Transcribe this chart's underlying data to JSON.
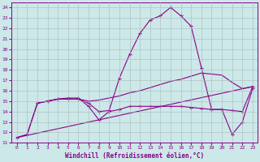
{
  "xlabel": "Windchill (Refroidissement éolien,°C)",
  "background_color": "#cce8e8",
  "line_color": "#880088",
  "xlim": [
    -0.5,
    23.5
  ],
  "ylim": [
    11,
    24.5
  ],
  "xticks": [
    0,
    1,
    2,
    3,
    4,
    5,
    6,
    7,
    8,
    9,
    10,
    11,
    12,
    13,
    14,
    15,
    16,
    17,
    18,
    19,
    20,
    21,
    22,
    23
  ],
  "yticks": [
    11,
    12,
    13,
    14,
    15,
    16,
    17,
    18,
    19,
    20,
    21,
    22,
    23,
    24
  ],
  "line1_x": [
    0,
    1,
    2,
    3,
    4,
    5,
    6,
    7,
    8,
    9,
    10,
    11,
    12,
    13,
    14,
    15,
    16,
    17,
    18,
    19,
    20,
    21,
    22,
    23
  ],
  "line1_y": [
    11.5,
    11.8,
    14.8,
    15.0,
    15.2,
    15.2,
    15.2,
    14.8,
    14.0,
    14.1,
    17.2,
    19.5,
    21.5,
    22.8,
    23.2,
    24.0,
    23.2,
    22.2,
    18.2,
    14.2,
    14.2,
    11.8,
    13.0,
    16.2
  ],
  "line2_x": [
    0,
    1,
    2,
    3,
    4,
    5,
    6,
    7,
    8,
    9,
    10,
    11,
    12,
    13,
    14,
    15,
    16,
    17,
    18,
    19,
    20,
    21,
    22,
    23
  ],
  "line2_y": [
    11.5,
    11.8,
    14.8,
    15.0,
    15.2,
    15.2,
    15.2,
    15.0,
    15.1,
    15.3,
    15.5,
    15.8,
    16.0,
    16.3,
    16.6,
    16.9,
    17.1,
    17.4,
    17.7,
    17.6,
    17.5,
    16.8,
    16.2,
    16.4
  ],
  "line3_x": [
    2,
    3,
    4,
    5,
    6,
    7,
    8,
    9,
    10,
    11,
    12,
    13,
    14,
    15,
    16,
    17,
    18,
    19,
    20,
    21,
    22,
    23
  ],
  "line3_y": [
    14.8,
    15.0,
    15.2,
    15.3,
    15.3,
    14.5,
    13.2,
    14.0,
    14.2,
    14.5,
    14.5,
    14.5,
    14.5,
    14.5,
    14.5,
    14.4,
    14.3,
    14.2,
    14.2,
    14.1,
    14.0,
    16.4
  ],
  "line4_x": [
    0,
    23
  ],
  "line4_y": [
    11.5,
    16.4
  ]
}
